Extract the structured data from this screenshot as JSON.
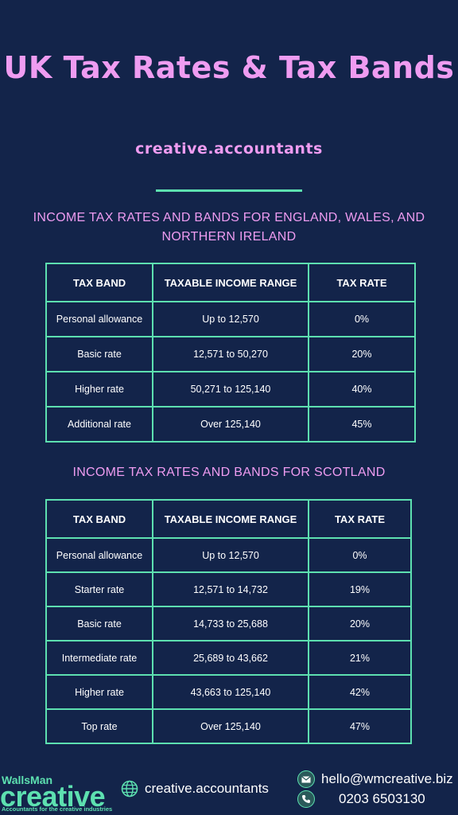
{
  "title": "UK Tax Rates & Tax Bands",
  "subtitle": "creative.accountants",
  "sections": [
    {
      "heading": "INCOME TAX RATES AND BANDS FOR ENGLAND, WALES, AND NORTHERN IRELAND",
      "headers": [
        "TAX BAND",
        "TAXABLE INCOME RANGE",
        "TAX RATE"
      ],
      "rows": [
        [
          "Personal allowance",
          "Up to 12,570",
          "0%"
        ],
        [
          "Basic rate",
          "12,571 to 50,270",
          "20%"
        ],
        [
          "Higher rate",
          "50,271 to 125,140",
          "40%"
        ],
        [
          "Additional rate",
          "Over 125,140",
          "45%"
        ]
      ]
    },
    {
      "heading": "INCOME TAX RATES AND BANDS FOR SCOTLAND",
      "headers": [
        "TAX BAND",
        "TAXABLE INCOME RANGE",
        "TAX RATE"
      ],
      "rows": [
        [
          "Personal allowance",
          "Up to 12,570",
          "0%"
        ],
        [
          "Starter rate",
          "12,571 to 14,732",
          "19%"
        ],
        [
          "Basic rate",
          "14,733 to 25,688",
          "20%"
        ],
        [
          "Intermediate rate",
          "25,689 to 43,662",
          "21%"
        ],
        [
          "Higher rate",
          "43,663 to 125,140",
          "42%"
        ],
        [
          "Top rate",
          "Over 125,140",
          "47%"
        ]
      ]
    }
  ],
  "footer": {
    "logo_top": "WallsMan",
    "logo_main": "creative",
    "logo_tagline": "Accountants for the creative industries",
    "website": "creative.accountants",
    "website_icon": "globe-icon",
    "email": "hello@wmcreative.biz",
    "email_icon": "mail-icon",
    "phone": "0203 6503130",
    "phone_icon": "phone-icon"
  },
  "colors": {
    "background": "#13244a",
    "accent_pink": "#ef9cf1",
    "accent_green": "#5de0b0",
    "text": "#ffffff"
  }
}
